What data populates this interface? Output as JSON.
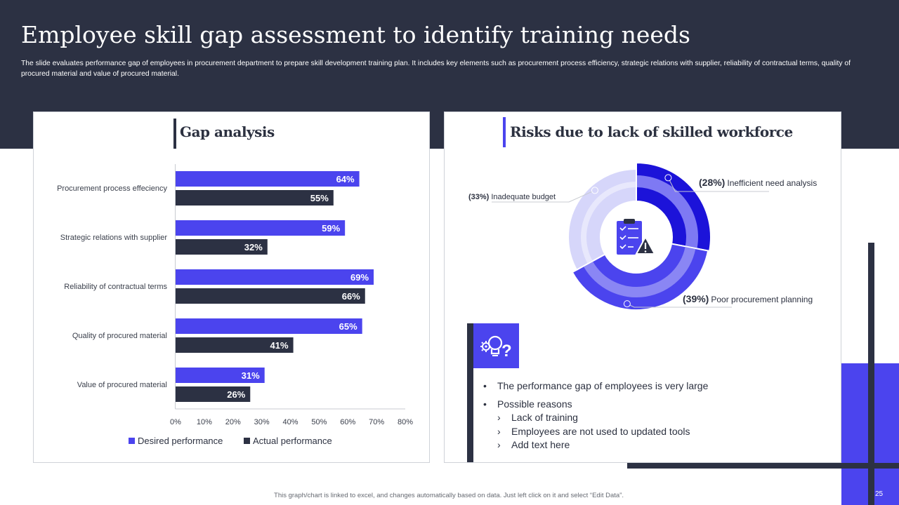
{
  "header": {
    "title": "Employee skill gap assessment to identify training needs",
    "description": "The slide evaluates performance gap of employees in procurement department to prepare skill development training plan. It includes key elements such as procurement process efficiency, strategic relations with supplier, reliability of contractual terms, quality of procured material and value of procured material."
  },
  "gap_panel": {
    "heading": "Gap analysis"
  },
  "risk_panel": {
    "heading": "Risks due to lack of skilled workforce"
  },
  "colors": {
    "desired": "#4b44ee",
    "actual": "#2c3143",
    "header_bg": "#2c3143",
    "accent": "#4b44ee"
  },
  "chart_data": [
    {
      "type": "bar",
      "orientation": "horizontal",
      "categories": [
        "Procurement process effeciency",
        "Strategic relations with supplier",
        "Reliability of contractual terms",
        "Quality of procured material",
        "Value of procured material"
      ],
      "series": [
        {
          "name": "Desired performance",
          "values": [
            64,
            59,
            69,
            65,
            31
          ],
          "color": "#4b44ee"
        },
        {
          "name": "Actual performance",
          "values": [
            55,
            32,
            66,
            41,
            26
          ],
          "color": "#2c3143"
        }
      ],
      "value_labels": {
        "desired": [
          "64%",
          "59%",
          "69%",
          "65%",
          "31%"
        ],
        "actual": [
          "55%",
          "32%",
          "66%",
          "41%",
          "26%"
        ]
      },
      "xlim": [
        0,
        80
      ],
      "xticks": [
        "0%",
        "10%",
        "20%",
        "30%",
        "40%",
        "50%",
        "60%",
        "70%",
        "80%"
      ],
      "grid": false,
      "legend": "bottom"
    },
    {
      "type": "pie",
      "style": "donut",
      "slices": [
        {
          "label": "Inefficient need analysis",
          "value": 28,
          "pct": "(28%)",
          "color": "#1c13d9"
        },
        {
          "label": "Poor procurement planning",
          "value": 39,
          "pct": "(39%)",
          "color": "#4b44ee"
        },
        {
          "label": "Inadequate budget",
          "value": 33,
          "pct": "(33%)",
          "color": "#d6d6fa"
        }
      ],
      "center_icon": "clipboard-warning-icon"
    }
  ],
  "insights": {
    "icon": "lightbulb-gear-question-icon",
    "bullets": [
      "The performance gap of employees is very large",
      "Possible reasons"
    ],
    "reasons": [
      "Lack of training",
      "Employees are not used to updated tools",
      "Add text here"
    ]
  },
  "footer": {
    "note": "This graph/chart is linked to excel, and changes automatically based on data. Just left click on it and select “Edit Data”.",
    "page_number": "25"
  }
}
